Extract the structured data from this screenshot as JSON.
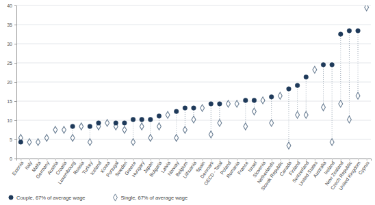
{
  "chart_data": {
    "type": "dot",
    "categories": [
      "Estonia",
      "Italy",
      "Malta",
      "Germany",
      "Austria",
      "Croatia",
      "Luxembourg",
      "Russia",
      "Turkey",
      "Iceland",
      "Korea",
      "Portugal",
      "Sweden",
      "Greece",
      "Hungary",
      "Japan",
      "Bulgaria",
      "Latvia",
      "Norway",
      "Belgium",
      "Lithuania",
      "Spain",
      "Denmark",
      "OECD - Total",
      "Poland",
      "Romania",
      "France",
      "Israel",
      "Slovenia",
      "Netherlands",
      "Slovak Republic",
      "Canada",
      "Finland",
      "Switzerland",
      "United States",
      "Australia",
      "Ireland",
      "New Zealand",
      "Czech Republic",
      "United Kingdom",
      "Cyprus"
    ],
    "series": [
      {
        "name": "Couple, 67% of average wage",
        "color": "#1f3a5a",
        "marker": "circle",
        "values": [
          4.3,
          null,
          null,
          null,
          null,
          null,
          8.4,
          null,
          8.4,
          9.3,
          null,
          9.3,
          9.3,
          10.2,
          10.2,
          10.2,
          11.1,
          null,
          12.3,
          13.2,
          13.2,
          null,
          14.3,
          14.3,
          null,
          null,
          15.2,
          15.2,
          null,
          16.1,
          null,
          18.2,
          19.1,
          21.3,
          null,
          24.5,
          24.5,
          32.5,
          33.4,
          33.4,
          null
        ]
      },
      {
        "name": "Single, 67% of average wage",
        "color": "#6b7f94",
        "marker": "diamond",
        "values": [
          5.4,
          4.3,
          4.3,
          5.4,
          7.5,
          7.5,
          5.4,
          8.4,
          4.3,
          8.4,
          9.3,
          8.4,
          7.5,
          4.3,
          8.4,
          5.4,
          8.4,
          11.4,
          5.4,
          7.5,
          10.2,
          13.2,
          6.3,
          9.3,
          14.3,
          14.3,
          8.4,
          12.3,
          15.2,
          9.3,
          16.4,
          3.4,
          11.4,
          11.4,
          23.2,
          13.4,
          4.3,
          14.3,
          10.2,
          16.4,
          39.5
        ]
      }
    ],
    "ylim": [
      0,
      40
    ],
    "yticks": [
      0,
      5,
      10,
      15,
      20,
      25,
      30,
      35,
      40
    ],
    "grid": true,
    "legend": "bottom"
  }
}
